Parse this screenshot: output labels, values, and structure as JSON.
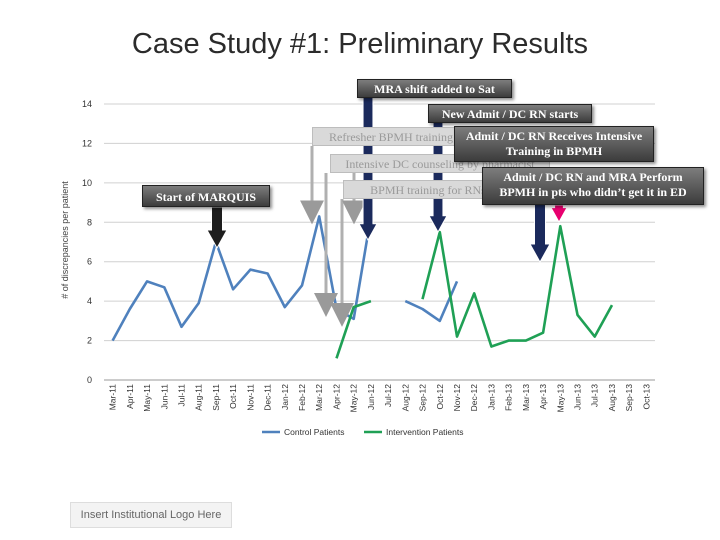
{
  "slide": {
    "title": "Case Study #1: Preliminary Results",
    "logo_placeholder": "Insert Institutional Logo Here"
  },
  "annotations": [
    {
      "id": "mra-shift",
      "text": "MRA shift added to Sat"
    },
    {
      "id": "new-admit",
      "text": "New Admit / DC RN starts"
    },
    {
      "id": "refresher",
      "text": "Refresher BPMH training"
    },
    {
      "id": "admit-intensive",
      "text": "Admit / DC RN Receives Intensive Training in BPMH"
    },
    {
      "id": "intensive-dc",
      "text": "Intensive DC counseling by pharmacist"
    },
    {
      "id": "bpmh-rns",
      "text": "BPMH training for RNs"
    },
    {
      "id": "perform-bpmh",
      "text": "Admit / DC RN and MRA Perform BPMH in pts who didn’t get it in ED"
    },
    {
      "id": "start-marquis",
      "text": "Start of MARQUIS"
    }
  ],
  "colors": {
    "control": "#4f81bd",
    "intervention": "#1fa055",
    "arrow_dark": "#1e1e1e",
    "arrow_navy": "#1b2a5c",
    "arrow_pink": "#e8006f",
    "grid": "#d0d0d0"
  },
  "chart_data": {
    "type": "line",
    "title": "",
    "xlabel": "",
    "ylabel": "# of discrepancies per patient",
    "ylim": [
      0,
      14
    ],
    "yticks": [
      0,
      2,
      4,
      6,
      8,
      10,
      12,
      14
    ],
    "grid": true,
    "legend": "bottom",
    "categories": [
      "Mar-11",
      "Apr-11",
      "May-11",
      "Jun-11",
      "Jul-11",
      "Aug-11",
      "Sep-11",
      "Oct-11",
      "Nov-11",
      "Dec-11",
      "Jan-12",
      "Feb-12",
      "Mar-12",
      "Apr-12",
      "May-12",
      "Jun-12",
      "Jul-12",
      "Aug-12",
      "Sep-12",
      "Oct-12",
      "Nov-12",
      "Dec-12",
      "Jan-13",
      "Feb-13",
      "Mar-13",
      "Apr-13",
      "May-13",
      "Jun-13",
      "Jul-13",
      "Aug-13",
      "Sep-13",
      "Oct-13"
    ],
    "series": [
      {
        "name": "Control Patients",
        "color": "#4f81bd",
        "values": [
          2.0,
          3.6,
          5.0,
          4.7,
          2.7,
          3.9,
          7.0,
          4.6,
          5.6,
          5.4,
          3.7,
          4.8,
          8.3,
          3.6,
          3.1,
          8.3,
          null,
          4.0,
          3.6,
          3.0,
          5.0,
          null,
          null,
          null,
          null,
          null,
          null,
          null,
          null,
          null,
          null,
          null
        ]
      },
      {
        "name": "Intervention Patients",
        "color": "#1fa055",
        "values": [
          null,
          null,
          null,
          null,
          null,
          null,
          null,
          null,
          null,
          null,
          null,
          null,
          null,
          1.1,
          3.7,
          4.0,
          null,
          null,
          4.1,
          7.5,
          2.2,
          4.4,
          1.7,
          2.0,
          2.0,
          2.4,
          7.8,
          3.3,
          2.2,
          3.8,
          null,
          null
        ]
      }
    ]
  }
}
